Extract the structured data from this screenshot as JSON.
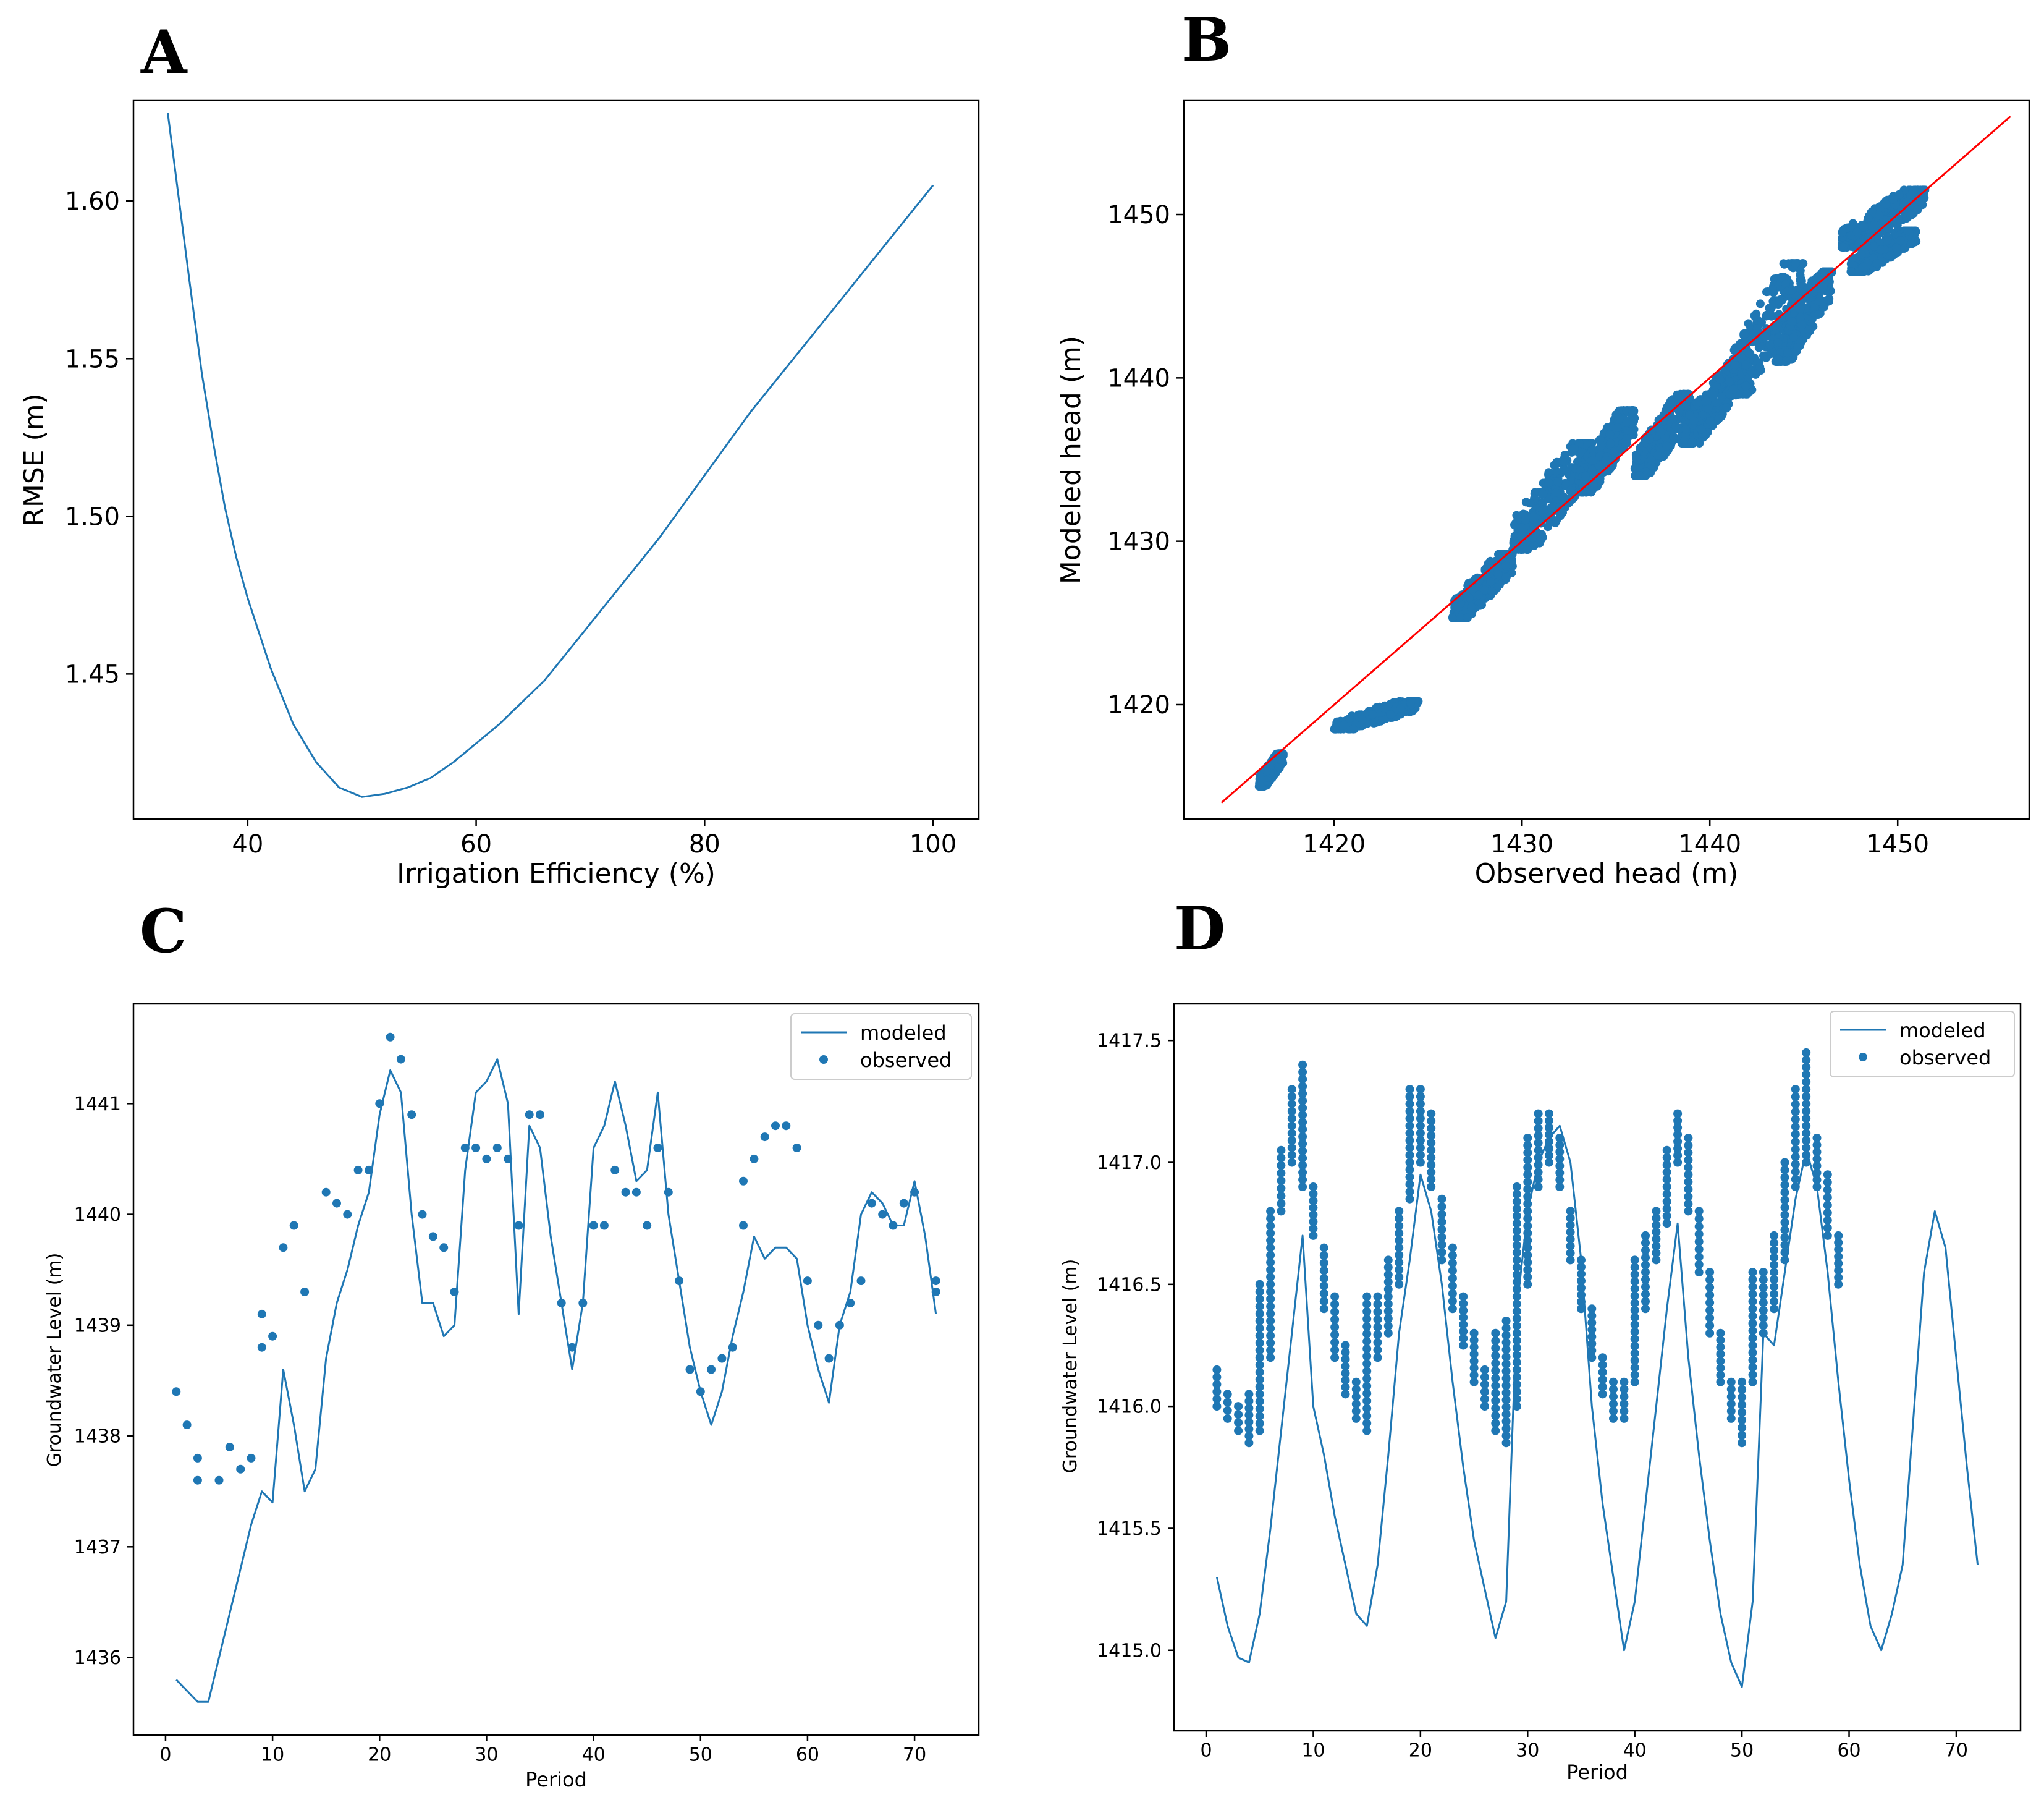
{
  "colors": {
    "series": "#1f77b4",
    "identity_line": "#ff0000"
  },
  "chart_data": [
    {
      "panel": "A",
      "type": "line",
      "xlabel": "Irrigation Efficiency (%)",
      "ylabel": "RMSE (m)",
      "xlim": [
        30,
        104
      ],
      "ylim": [
        1.404,
        1.632
      ],
      "xticks": [
        40,
        60,
        80,
        100
      ],
      "yticks": [
        1.45,
        1.5,
        1.55,
        1.6
      ],
      "ytick_labels": [
        "1.45",
        "1.50",
        "1.55",
        "1.60"
      ],
      "series": [
        {
          "x": [
            33,
            34,
            35,
            36,
            37,
            38,
            39,
            40,
            42,
            44,
            46,
            48,
            50,
            52,
            54,
            56,
            58,
            60,
            62,
            64,
            66,
            68,
            70,
            72,
            74,
            76,
            78,
            80,
            82,
            84,
            86,
            88,
            90,
            92,
            94,
            96,
            98,
            100
          ],
          "y": [
            1.628,
            1.6,
            1.572,
            1.545,
            1.523,
            1.503,
            1.487,
            1.474,
            1.452,
            1.434,
            1.422,
            1.414,
            1.411,
            1.412,
            1.414,
            1.417,
            1.422,
            1.428,
            1.434,
            1.441,
            1.448,
            1.457,
            1.466,
            1.475,
            1.484,
            1.493,
            1.503,
            1.513,
            1.523,
            1.533,
            1.542,
            1.551,
            1.56,
            1.569,
            1.578,
            1.587,
            1.596,
            1.605
          ]
        }
      ]
    },
    {
      "panel": "B",
      "type": "scatter",
      "xlabel": "Observed head (m)",
      "ylabel": "Modeled head (m)",
      "xlim": [
        1412,
        1457
      ],
      "ylim": [
        1413,
        1457
      ],
      "xticks": [
        1420,
        1430,
        1440,
        1450
      ],
      "yticks": [
        1420,
        1430,
        1440,
        1450
      ],
      "identity_line": {
        "x": [
          1414,
          1456
        ],
        "y": [
          1414,
          1456
        ]
      },
      "clusters": [
        {
          "x": [
            1416.0,
            1417.3
          ],
          "y": [
            1415.0,
            1417.0
          ]
        },
        {
          "x": [
            1420.0,
            1424.5
          ],
          "y": [
            1418.5,
            1420.2
          ]
        },
        {
          "x": [
            1426.3,
            1429.5
          ],
          "y": [
            1425.3,
            1429.2
          ]
        },
        {
          "x": [
            1429.5,
            1433.8
          ],
          "y": [
            1429.5,
            1436.0
          ]
        },
        {
          "x": [
            1433.0,
            1436.0
          ],
          "y": [
            1433.0,
            1438.0
          ]
        },
        {
          "x": [
            1436.0,
            1439.0
          ],
          "y": [
            1434.0,
            1439.0
          ]
        },
        {
          "x": [
            1438.5,
            1442.0
          ],
          "y": [
            1436.0,
            1441.0
          ]
        },
        {
          "x": [
            1441.0,
            1445.0
          ],
          "y": [
            1439.0,
            1447.0
          ]
        },
        {
          "x": [
            1443.5,
            1446.5
          ],
          "y": [
            1441.0,
            1446.5
          ]
        },
        {
          "x": [
            1447.0,
            1451.5
          ],
          "y": [
            1448.0,
            1451.5
          ]
        },
        {
          "x": [
            1447.5,
            1451.0
          ],
          "y": [
            1446.5,
            1449.0
          ]
        }
      ]
    },
    {
      "panel": "C",
      "type": "line",
      "xlabel": "Period",
      "ylabel": "Groundwater Level (m)",
      "xlim": [
        -3,
        76
      ],
      "ylim": [
        1435.3,
        1441.9
      ],
      "xticks": [
        0,
        10,
        20,
        30,
        40,
        50,
        60,
        70
      ],
      "yticks": [
        1436,
        1437,
        1438,
        1439,
        1440,
        1441
      ],
      "legend": {
        "position": "upper right",
        "entries": [
          "modeled",
          "observed"
        ]
      },
      "series": [
        {
          "name": "modeled",
          "x": [
            1,
            2,
            3,
            4,
            5,
            6,
            7,
            8,
            9,
            10,
            11,
            12,
            13,
            14,
            15,
            16,
            17,
            18,
            19,
            20,
            21,
            22,
            23,
            24,
            25,
            26,
            27,
            28,
            29,
            30,
            31,
            32,
            33,
            34,
            35,
            36,
            37,
            38,
            39,
            40,
            41,
            42,
            43,
            44,
            45,
            46,
            47,
            48,
            49,
            50,
            51,
            52,
            53,
            54,
            55,
            56,
            57,
            58,
            59,
            60,
            61,
            62,
            63,
            64,
            65,
            66,
            67,
            68,
            69,
            70,
            71,
            72
          ],
          "y": [
            1435.8,
            1435.7,
            1435.6,
            1435.6,
            1436.0,
            1436.4,
            1436.8,
            1437.2,
            1437.5,
            1437.4,
            1438.6,
            1438.1,
            1437.5,
            1437.7,
            1438.7,
            1439.2,
            1439.5,
            1439.9,
            1440.2,
            1440.9,
            1441.3,
            1441.1,
            1440.0,
            1439.2,
            1439.2,
            1438.9,
            1439.0,
            1440.4,
            1441.1,
            1441.2,
            1441.4,
            1441.0,
            1439.1,
            1440.8,
            1440.6,
            1439.8,
            1439.2,
            1438.6,
            1439.2,
            1440.6,
            1440.8,
            1441.2,
            1440.8,
            1440.3,
            1440.4,
            1441.1,
            1440.0,
            1439.4,
            1438.8,
            1438.4,
            1438.1,
            1438.4,
            1438.9,
            1439.3,
            1439.8,
            1439.6,
            1439.7,
            1439.7,
            1439.6,
            1439.0,
            1438.6,
            1438.3,
            1439.0,
            1439.3,
            1440.0,
            1440.2,
            1440.1,
            1439.9,
            1439.9,
            1440.3,
            1439.8,
            1439.1
          ]
        },
        {
          "name": "observed",
          "x": [
            1,
            2,
            3,
            3,
            5,
            6,
            7,
            8,
            9,
            9,
            10,
            11,
            12,
            13,
            15,
            16,
            17,
            18,
            19,
            20,
            21,
            22,
            23,
            24,
            25,
            26,
            27,
            28,
            29,
            30,
            31,
            32,
            33,
            34,
            35,
            37,
            38,
            39,
            40,
            41,
            42,
            43,
            44,
            45,
            46,
            47,
            48,
            49,
            50,
            51,
            52,
            53,
            54,
            54,
            55,
            56,
            57,
            58,
            59,
            60,
            61,
            62,
            63,
            64,
            65,
            66,
            67,
            68,
            69,
            70,
            72,
            72
          ],
          "y": [
            1438.4,
            1438.1,
            1437.8,
            1437.6,
            1437.6,
            1437.9,
            1437.7,
            1437.8,
            1438.8,
            1439.1,
            1438.9,
            1439.7,
            1439.9,
            1439.3,
            1440.2,
            1440.1,
            1440.0,
            1440.4,
            1440.4,
            1441.0,
            1441.6,
            1441.4,
            1440.9,
            1440.0,
            1439.8,
            1439.7,
            1439.3,
            1440.6,
            1440.6,
            1440.5,
            1440.6,
            1440.5,
            1439.9,
            1440.9,
            1440.9,
            1439.2,
            1438.8,
            1439.2,
            1439.9,
            1439.9,
            1440.4,
            1440.2,
            1440.2,
            1439.9,
            1440.6,
            1440.2,
            1439.4,
            1438.6,
            1438.4,
            1438.6,
            1438.7,
            1438.8,
            1439.9,
            1440.3,
            1440.5,
            1440.7,
            1440.8,
            1440.8,
            1440.6,
            1439.4,
            1439.0,
            1438.7,
            1439.0,
            1439.2,
            1439.4,
            1440.1,
            1440.0,
            1439.9,
            1440.1,
            1440.2,
            1439.4,
            1439.3
          ]
        }
      ]
    },
    {
      "panel": "D",
      "type": "line",
      "xlabel": "Period",
      "ylabel": "Groundwater Level (m)",
      "xlim": [
        -3,
        76
      ],
      "ylim": [
        1414.67,
        1417.65
      ],
      "xticks": [
        0,
        10,
        20,
        30,
        40,
        50,
        60,
        70
      ],
      "yticks": [
        1415.0,
        1415.5,
        1416.0,
        1416.5,
        1417.0,
        1417.5
      ],
      "ytick_labels": [
        "1415.0",
        "1415.5",
        "1416.0",
        "1416.5",
        "1417.0",
        "1417.5"
      ],
      "legend": {
        "position": "upper right",
        "entries": [
          "modeled",
          "observed"
        ]
      },
      "series": [
        {
          "name": "modeled",
          "x": [
            1,
            2,
            3,
            4,
            5,
            6,
            7,
            8,
            9,
            10,
            11,
            12,
            13,
            14,
            15,
            16,
            17,
            18,
            19,
            20,
            21,
            22,
            23,
            24,
            25,
            26,
            27,
            28,
            29,
            30,
            31,
            32,
            33,
            34,
            35,
            36,
            37,
            38,
            39,
            40,
            41,
            42,
            43,
            44,
            45,
            46,
            47,
            48,
            49,
            50,
            51,
            52,
            53,
            54,
            55,
            56,
            57,
            58,
            59,
            60,
            61,
            62,
            63,
            64,
            65,
            66,
            67,
            68,
            69,
            70,
            71,
            72
          ],
          "y": [
            1415.3,
            1415.1,
            1414.97,
            1414.95,
            1415.15,
            1415.5,
            1415.9,
            1416.3,
            1416.7,
            1416.0,
            1415.8,
            1415.55,
            1415.35,
            1415.15,
            1415.1,
            1415.35,
            1415.8,
            1416.3,
            1416.6,
            1416.95,
            1416.8,
            1416.5,
            1416.1,
            1415.75,
            1415.45,
            1415.25,
            1415.05,
            1415.2,
            1416.4,
            1416.8,
            1417.0,
            1417.1,
            1417.15,
            1417.0,
            1416.6,
            1416.0,
            1415.6,
            1415.3,
            1415.0,
            1415.2,
            1415.6,
            1416.0,
            1416.4,
            1416.75,
            1416.2,
            1415.8,
            1415.45,
            1415.15,
            1414.95,
            1414.85,
            1415.2,
            1416.3,
            1416.25,
            1416.55,
            1416.85,
            1417.05,
            1416.9,
            1416.55,
            1416.1,
            1415.7,
            1415.35,
            1415.1,
            1415.0,
            1415.15,
            1415.35,
            1415.95,
            1416.55,
            1416.8,
            1416.65,
            1416.2,
            1415.75,
            1415.35
          ]
        },
        {
          "name": "observed",
          "x": [
            1,
            2,
            3,
            4,
            5,
            6,
            7,
            8,
            9,
            10,
            11,
            12,
            13,
            14,
            15,
            16,
            17,
            18,
            19,
            20,
            21,
            22,
            23,
            24,
            25,
            26,
            27,
            28,
            29,
            30,
            31,
            32,
            33,
            34,
            35,
            36,
            37,
            38,
            39,
            40,
            41,
            42,
            43,
            44,
            45,
            46,
            47,
            48,
            49,
            50,
            51,
            52,
            53,
            54,
            55,
            56,
            57,
            58,
            59
          ],
          "lo": [
            1416.0,
            1415.95,
            1415.9,
            1415.85,
            1415.9,
            1416.2,
            1416.8,
            1417.0,
            1416.9,
            1416.7,
            1416.4,
            1416.2,
            1416.05,
            1415.95,
            1415.9,
            1416.2,
            1416.3,
            1416.5,
            1416.85,
            1417.0,
            1416.9,
            1416.6,
            1416.4,
            1416.25,
            1416.1,
            1416.0,
            1415.9,
            1415.85,
            1416.0,
            1416.5,
            1416.9,
            1417.0,
            1416.9,
            1416.6,
            1416.4,
            1416.2,
            1416.05,
            1415.95,
            1415.95,
            1416.1,
            1416.4,
            1416.6,
            1416.75,
            1417.0,
            1416.8,
            1416.55,
            1416.3,
            1416.1,
            1415.95,
            1415.85,
            1416.1,
            1416.3,
            1416.4,
            1416.6,
            1416.9,
            1417.0,
            1416.9,
            1416.7,
            1416.5
          ],
          "hi": [
            1416.15,
            1416.05,
            1416.0,
            1416.05,
            1416.5,
            1416.8,
            1417.05,
            1417.3,
            1417.4,
            1416.9,
            1416.65,
            1416.45,
            1416.25,
            1416.1,
            1416.45,
            1416.45,
            1416.6,
            1416.8,
            1417.3,
            1417.3,
            1417.2,
            1416.85,
            1416.65,
            1416.45,
            1416.3,
            1416.15,
            1416.3,
            1416.35,
            1416.9,
            1417.1,
            1417.2,
            1417.2,
            1417.1,
            1416.8,
            1416.6,
            1416.4,
            1416.2,
            1416.1,
            1416.1,
            1416.6,
            1416.7,
            1416.8,
            1417.05,
            1417.2,
            1417.1,
            1416.8,
            1416.55,
            1416.3,
            1416.1,
            1416.1,
            1416.55,
            1416.55,
            1416.7,
            1417.0,
            1417.3,
            1417.45,
            1417.1,
            1416.95,
            1416.7
          ]
        }
      ]
    }
  ]
}
